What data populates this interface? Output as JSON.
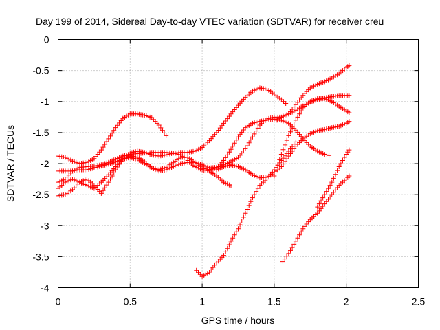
{
  "chart_data": {
    "type": "scatter",
    "title": "Day 199 of 2014, Sidereal Day-to-day VTEC variation (SDTVAR) for receiver creu",
    "xlabel": "GPS time / hours",
    "ylabel": "SDTVAR / TECUs",
    "xlim": [
      0,
      2.5
    ],
    "ylim": [
      -4,
      0
    ],
    "xticks": [
      "0",
      "0.5",
      "1",
      "1.5",
      "2",
      "2.5"
    ],
    "yticks": [
      "0",
      "-0.5",
      "-1",
      "-1.5",
      "-2",
      "-2.5",
      "-3",
      "-3.5",
      "-4"
    ],
    "grid": true,
    "marker": "+",
    "color": "#ff0000",
    "series": [
      {
        "x": [
          0.0,
          0.05,
          0.1,
          0.15,
          0.2,
          0.25,
          0.3,
          0.35,
          0.4,
          0.45,
          0.5,
          0.55,
          0.6,
          0.65,
          0.7,
          0.75
        ],
        "y": [
          -1.88,
          -1.9,
          -1.96,
          -2.0,
          -1.98,
          -1.92,
          -1.78,
          -1.6,
          -1.42,
          -1.27,
          -1.2,
          -1.2,
          -1.22,
          -1.26,
          -1.38,
          -1.55
        ]
      },
      {
        "x": [
          0.0,
          0.05,
          0.1,
          0.15,
          0.2,
          0.25,
          0.3,
          0.35,
          0.4,
          0.45,
          0.5,
          0.55,
          0.6,
          0.65,
          0.7,
          0.75,
          0.8,
          0.85,
          0.9,
          0.95,
          1.0,
          1.05,
          1.1,
          1.15,
          1.2,
          1.25,
          1.3,
          1.35,
          1.4,
          1.45,
          1.5,
          1.55,
          1.58
        ],
        "y": [
          -2.3,
          -2.25,
          -2.12,
          -2.06,
          -2.05,
          -2.04,
          -2.02,
          -1.98,
          -1.93,
          -1.88,
          -1.85,
          -1.84,
          -1.83,
          -1.82,
          -1.82,
          -1.82,
          -1.83,
          -1.82,
          -1.82,
          -1.8,
          -1.74,
          -1.63,
          -1.5,
          -1.35,
          -1.2,
          -1.06,
          -0.93,
          -0.83,
          -0.78,
          -0.8,
          -0.88,
          -0.97,
          -1.03
        ]
      },
      {
        "x": [
          0.0,
          0.05,
          0.1,
          0.15,
          0.2,
          0.25,
          0.3,
          0.35,
          0.4,
          0.45,
          0.5,
          0.55,
          0.6,
          0.65,
          0.7,
          0.75,
          0.8,
          0.85,
          0.9,
          0.95,
          1.0,
          1.05,
          1.1,
          1.15,
          1.2
        ],
        "y": [
          -2.52,
          -2.5,
          -2.42,
          -2.3,
          -2.25,
          -2.35,
          -2.48,
          -2.3,
          -2.1,
          -1.92,
          -1.83,
          -1.8,
          -1.82,
          -1.86,
          -1.88,
          -1.86,
          -1.83,
          -1.86,
          -1.95,
          -2.05,
          -2.1,
          -2.12,
          -2.2,
          -2.3,
          -2.36
        ]
      },
      {
        "x": [
          0.0,
          0.05,
          0.1,
          0.15,
          0.2,
          0.25,
          0.3,
          0.35,
          0.4,
          0.45,
          0.5,
          0.55,
          0.6,
          0.65,
          0.7,
          0.75,
          0.8,
          0.85,
          0.9,
          0.95,
          1.0,
          1.05,
          1.1,
          1.15,
          1.2,
          1.25,
          1.3,
          1.35,
          1.4,
          1.45,
          1.5,
          1.55,
          1.6,
          1.65,
          1.7,
          1.75,
          1.8,
          1.85,
          1.9,
          1.95,
          2.0,
          2.02
        ],
        "y": [
          -2.4,
          -2.3,
          -2.25,
          -2.3,
          -2.35,
          -2.4,
          -2.3,
          -2.18,
          -2.05,
          -1.93,
          -1.87,
          -1.9,
          -1.97,
          -2.07,
          -2.12,
          -2.1,
          -2.05,
          -2.0,
          -1.98,
          -1.98,
          -2.02,
          -2.07,
          -2.06,
          -2.02,
          -1.97,
          -1.9,
          -1.76,
          -1.57,
          -1.38,
          -1.28,
          -1.25,
          -1.25,
          -1.2,
          -1.14,
          -1.07,
          -1.01,
          -0.97,
          -0.94,
          -0.92,
          -0.9,
          -0.9,
          -0.9
        ]
      },
      {
        "x": [
          0.0,
          0.05,
          0.1,
          0.15,
          0.2,
          0.25,
          0.3,
          0.35,
          0.4,
          0.45,
          0.5,
          0.55,
          0.6,
          0.65,
          0.7,
          0.75,
          0.8,
          0.85,
          0.9,
          0.95,
          1.0,
          1.05,
          1.1,
          1.15,
          1.2,
          1.25,
          1.3,
          1.35,
          1.4,
          1.45,
          1.5,
          1.55,
          1.6,
          1.65,
          1.7,
          1.75,
          1.8,
          1.85,
          1.88
        ],
        "y": [
          -2.12,
          -2.12,
          -2.12,
          -2.1,
          -2.1,
          -2.07,
          -2.04,
          -2.01,
          -1.97,
          -1.93,
          -1.9,
          -1.93,
          -2.0,
          -2.07,
          -2.1,
          -2.06,
          -1.98,
          -1.9,
          -1.9,
          -1.98,
          -2.07,
          -2.1,
          -2.07,
          -1.95,
          -1.77,
          -1.57,
          -1.42,
          -1.35,
          -1.32,
          -1.3,
          -1.28,
          -1.3,
          -1.35,
          -1.46,
          -1.6,
          -1.72,
          -1.8,
          -1.85,
          -1.87
        ]
      },
      {
        "x": [
          1.1,
          1.15,
          1.2,
          1.25,
          1.3,
          1.35,
          1.4,
          1.45,
          1.5,
          1.55,
          1.6,
          1.65,
          1.7,
          1.75,
          1.8,
          1.85,
          1.9,
          1.95,
          2.0,
          2.02
        ],
        "y": [
          -2.1,
          -2.05,
          -2.02,
          -2.05,
          -2.1,
          -2.18,
          -2.23,
          -2.22,
          -2.15,
          -2.05,
          -1.88,
          -1.72,
          -1.6,
          -1.52,
          -1.47,
          -1.45,
          -1.42,
          -1.4,
          -1.35,
          -1.32
        ]
      },
      {
        "x": [
          1.5,
          1.55,
          1.6,
          1.65,
          1.7,
          1.75,
          1.8,
          1.85,
          1.9,
          1.95,
          2.0,
          2.02
        ],
        "y": [
          -2.2,
          -1.85,
          -1.55,
          -1.3,
          -1.1,
          -1.0,
          -0.95,
          -0.95,
          -1.0,
          -1.08,
          -1.15,
          -1.18
        ]
      },
      {
        "x": [
          1.52,
          1.55,
          1.6,
          1.65,
          1.7,
          1.75,
          1.8,
          1.85,
          1.9,
          1.95,
          2.0,
          2.02
        ],
        "y": [
          -1.3,
          -1.25,
          -1.2,
          -1.05,
          -0.9,
          -0.78,
          -0.72,
          -0.68,
          -0.62,
          -0.55,
          -0.45,
          -0.42
        ]
      },
      {
        "x": [
          0.96,
          1.0,
          1.05,
          1.1,
          1.15,
          1.2,
          1.25,
          1.3,
          1.35,
          1.4,
          1.45,
          1.5,
          1.55,
          1.6,
          1.65
        ],
        "y": [
          -3.72,
          -3.82,
          -3.75,
          -3.6,
          -3.48,
          -3.25,
          -3.05,
          -2.8,
          -2.55,
          -2.35,
          -2.25,
          -2.1,
          -1.95,
          -1.8,
          -1.65
        ]
      },
      {
        "x": [
          1.56,
          1.6,
          1.65,
          1.7,
          1.75,
          1.8,
          1.85,
          1.9,
          1.95,
          2.0,
          2.02
        ],
        "y": [
          -3.58,
          -3.45,
          -3.25,
          -3.05,
          -2.9,
          -2.8,
          -2.65,
          -2.5,
          -2.35,
          -2.25,
          -2.2
        ]
      },
      {
        "x": [
          1.8,
          1.85,
          1.9,
          1.95,
          2.0,
          2.02
        ],
        "y": [
          -2.7,
          -2.5,
          -2.3,
          -2.05,
          -1.85,
          -1.78
        ]
      }
    ]
  }
}
